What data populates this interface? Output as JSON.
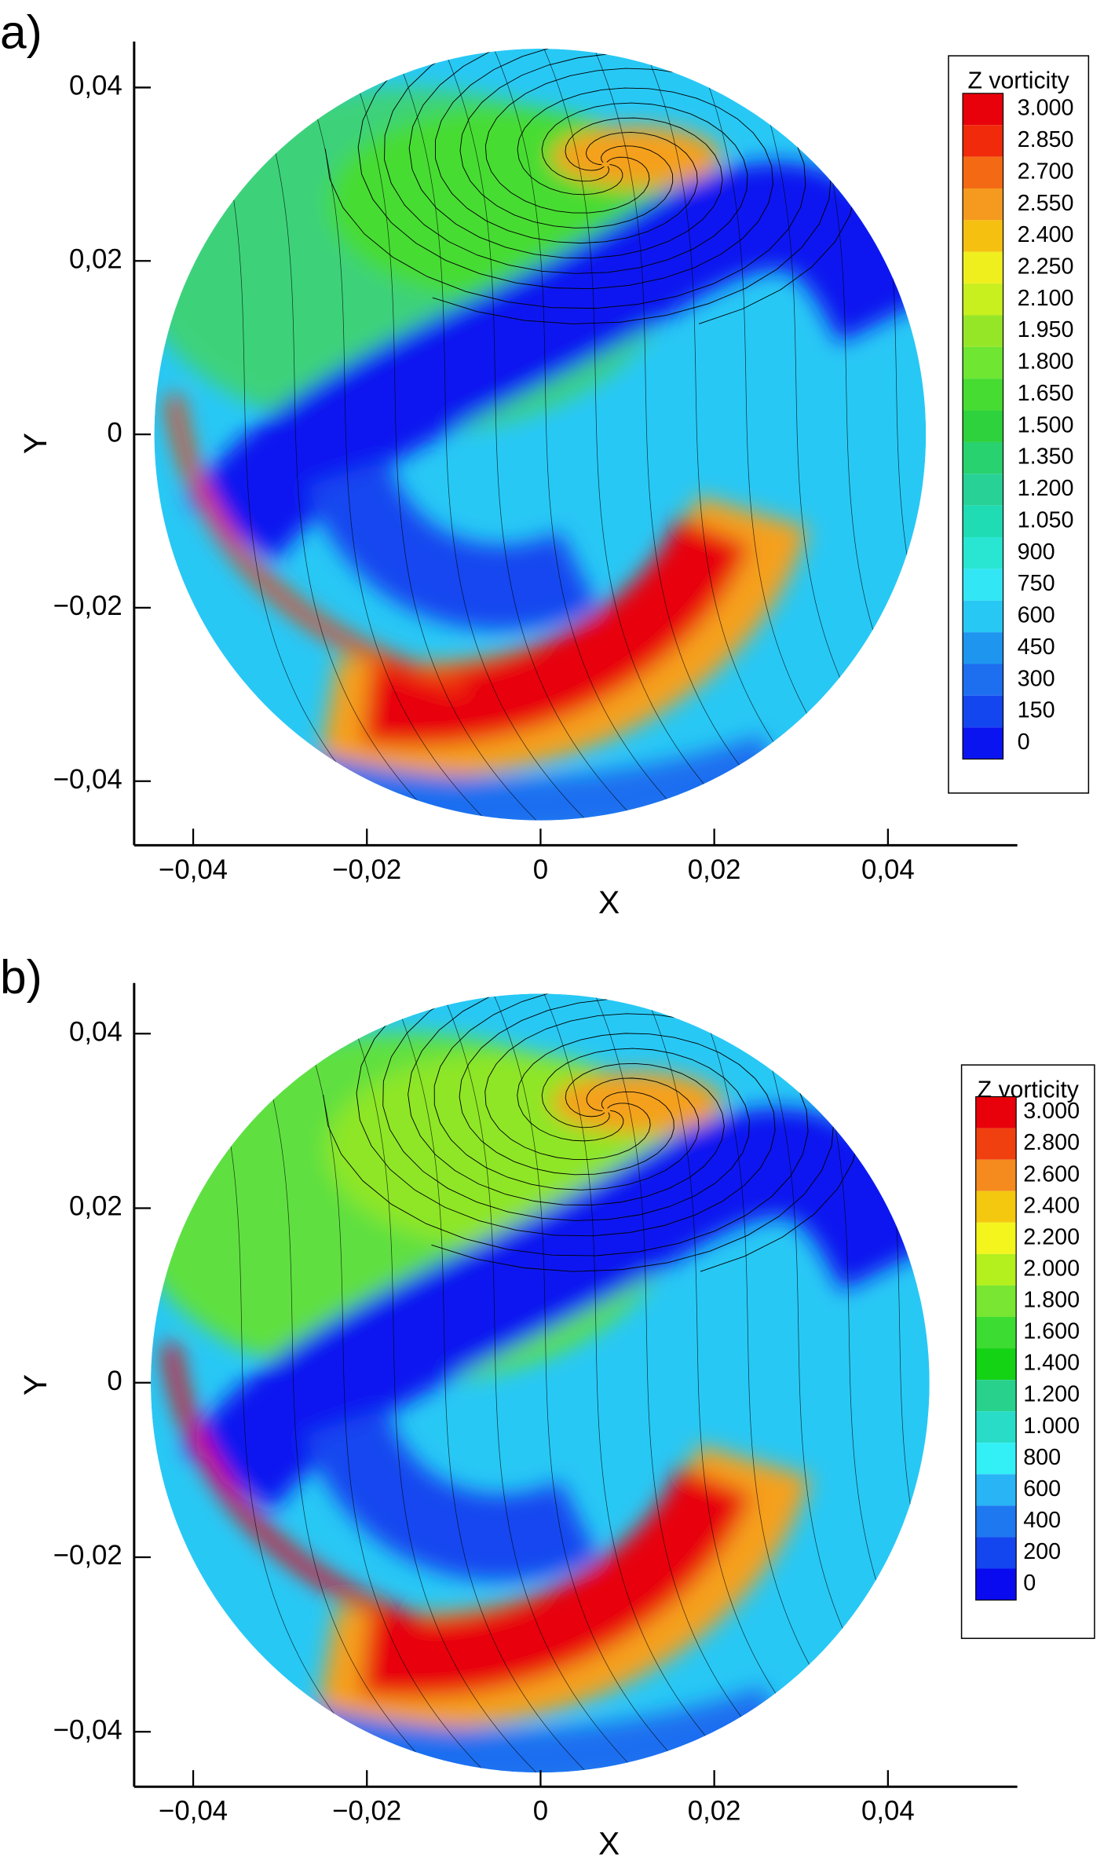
{
  "chart_data": [
    {
      "type": "contour",
      "panel_label": "a)",
      "xlabel": "X",
      "ylabel": "Y",
      "xlim": [
        -0.0468,
        0.0549
      ],
      "ylim": [
        -0.0474,
        0.0453
      ],
      "xticks": [
        {
          "value": -0.04,
          "label": "−0,04"
        },
        {
          "value": -0.02,
          "label": "−0,02"
        },
        0,
        {
          "value": 0.02,
          "label": "0,02"
        },
        {
          "value": 0.04,
          "label": "0,04"
        }
      ],
      "yticks": [
        {
          "value": -0.04,
          "label": "−0,04"
        },
        {
          "value": -0.02,
          "label": "−0,02"
        },
        0,
        {
          "value": 0.02,
          "label": "0,02"
        },
        {
          "value": 0.04,
          "label": "0,04"
        }
      ],
      "colorbar": {
        "title": "Z vorticity",
        "levels": [
          {
            "value": 3000,
            "label": "3.000"
          },
          {
            "value": 2850,
            "label": "2.850"
          },
          {
            "value": 2700,
            "label": "2.700"
          },
          {
            "value": 2550,
            "label": "2.550"
          },
          {
            "value": 2400,
            "label": "2.400"
          },
          {
            "value": 2250,
            "label": "2.250"
          },
          {
            "value": 2100,
            "label": "2.100"
          },
          {
            "value": 1950,
            "label": "1.950"
          },
          {
            "value": 1800,
            "label": "1.800"
          },
          {
            "value": 1650,
            "label": "1.650"
          },
          {
            "value": 1500,
            "label": "1.500"
          },
          {
            "value": 1350,
            "label": "1.350"
          },
          {
            "value": 1200,
            "label": "1.200"
          },
          {
            "value": 1050,
            "label": "1.050"
          },
          900,
          750,
          600,
          450,
          300,
          150,
          0
        ],
        "colors": [
          "#e8000b",
          "#f02a0a",
          "#f46a14",
          "#f59a1e",
          "#f5c010",
          "#f0ef1e",
          "#c8ef1e",
          "#96e628",
          "#6ee632",
          "#46dc32",
          "#2ed23c",
          "#28d26e",
          "#28d296",
          "#20dcb4",
          "#28e6d2",
          "#32e6f5",
          "#28c8f5",
          "#1e96f0",
          "#1e6ef0",
          "#1446f0",
          "#0a14f0"
        ]
      }
    },
    {
      "type": "contour",
      "panel_label": "b)",
      "xlabel": "X",
      "ylabel": "Y",
      "xlim": [
        -0.0468,
        0.0549
      ],
      "ylim": [
        -0.0463,
        0.0458
      ],
      "xticks": [
        {
          "value": -0.04,
          "label": "−0,04"
        },
        {
          "value": -0.02,
          "label": "−0,02"
        },
        0,
        {
          "value": 0.02,
          "label": "0,02"
        },
        {
          "value": 0.04,
          "label": "0,04"
        }
      ],
      "yticks": [
        {
          "value": -0.04,
          "label": "−0,04"
        },
        {
          "value": -0.02,
          "label": "−0,02"
        },
        0,
        {
          "value": 0.02,
          "label": "0,02"
        },
        {
          "value": 0.04,
          "label": "0,04"
        }
      ],
      "colorbar": {
        "title": "Z vorticity",
        "levels": [
          {
            "value": 3000,
            "label": "3.000"
          },
          {
            "value": 2800,
            "label": "2.800"
          },
          {
            "value": 2600,
            "label": "2.600"
          },
          {
            "value": 2400,
            "label": "2.400"
          },
          {
            "value": 2200,
            "label": "2.200"
          },
          {
            "value": 2000,
            "label": "2.000"
          },
          {
            "value": 1800,
            "label": "1.800"
          },
          {
            "value": 1600,
            "label": "1.600"
          },
          {
            "value": 1400,
            "label": "1.400"
          },
          {
            "value": 1200,
            "label": "1.200"
          },
          {
            "value": 1000,
            "label": "1.000"
          },
          800,
          600,
          400,
          200,
          0
        ],
        "colors": [
          "#e8000b",
          "#f04010",
          "#f58a1e",
          "#f5c810",
          "#f5f51e",
          "#b4ef1e",
          "#78e632",
          "#3cdc32",
          "#14d214",
          "#28d28c",
          "#28dcc8",
          "#32f0f5",
          "#28b4f5",
          "#1e78f0",
          "#1446f0",
          "#0a0af0"
        ]
      }
    }
  ]
}
